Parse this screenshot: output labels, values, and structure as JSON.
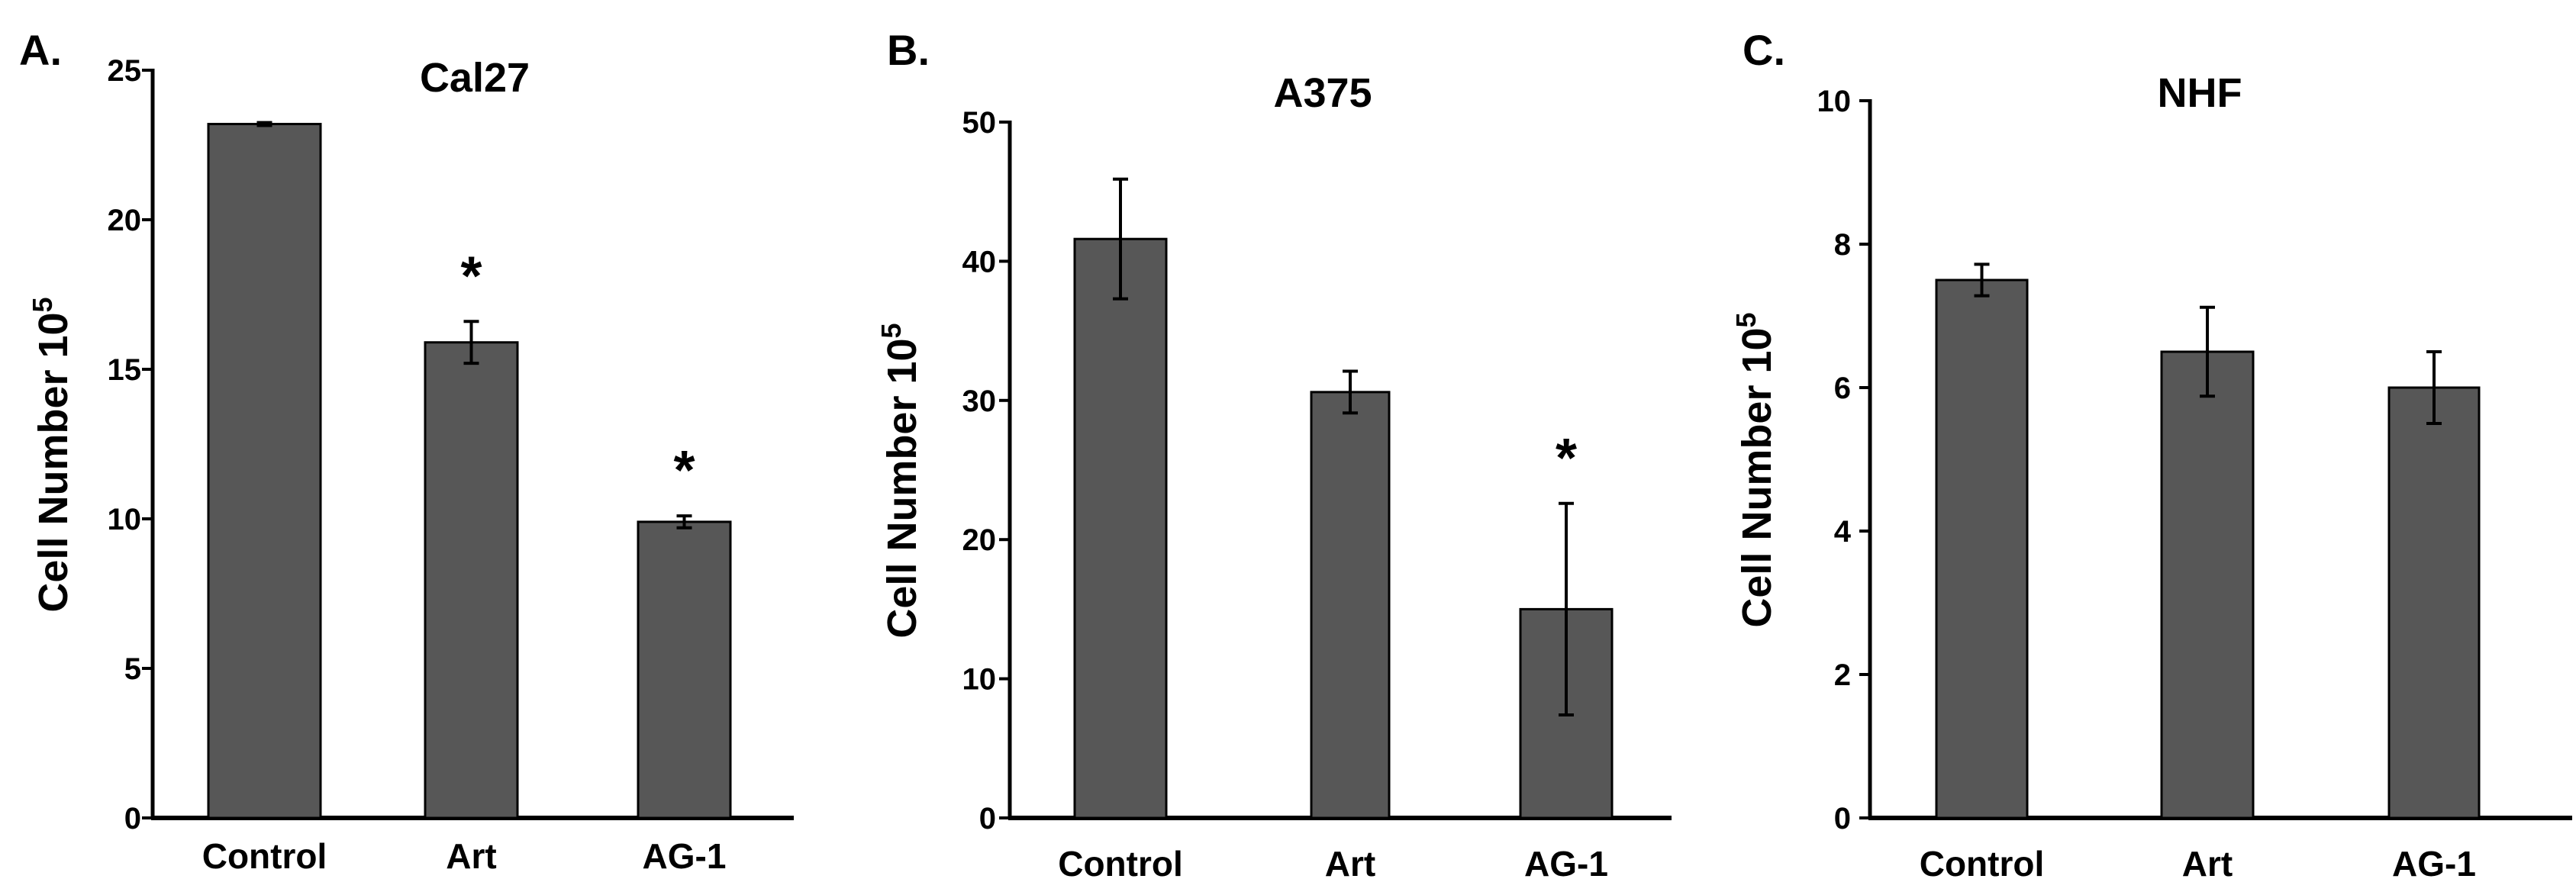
{
  "chart_data": [
    {
      "type": "bar",
      "panel_label": "A.",
      "title": "Cal27",
      "ylabel": "Cell Number 10",
      "ylabel_sup": "5",
      "xlabel": "",
      "categories": [
        "Control",
        "Art",
        "AG-1"
      ],
      "values": [
        23.2,
        15.9,
        9.9
      ],
      "errors": [
        0.05,
        0.7,
        0.2
      ],
      "significance": [
        "",
        "*",
        "*"
      ],
      "ylim": [
        0,
        25
      ],
      "yticks": [
        0,
        5,
        10,
        15,
        20,
        25
      ],
      "bar_color": "#575757",
      "grid": false
    },
    {
      "type": "bar",
      "panel_label": "B.",
      "title": "A375",
      "ylabel": "Cell Number 10",
      "ylabel_sup": "5",
      "xlabel": "",
      "categories": [
        "Control",
        "Art",
        "AG-1"
      ],
      "values": [
        41.6,
        30.6,
        15.0
      ],
      "errors": [
        4.3,
        1.5,
        7.6
      ],
      "significance": [
        "",
        "",
        "*"
      ],
      "ylim": [
        0,
        50
      ],
      "yticks": [
        0,
        10,
        20,
        30,
        40,
        50
      ],
      "bar_color": "#575757",
      "grid": false
    },
    {
      "type": "bar",
      "panel_label": "C.",
      "title": "NHF",
      "ylabel": "Cell Number 10",
      "ylabel_sup": "5",
      "xlabel": "",
      "categories": [
        "Control",
        "Art",
        "AG-1"
      ],
      "values": [
        7.5,
        6.5,
        6.0
      ],
      "errors": [
        0.22,
        0.62,
        0.5
      ],
      "significance": [
        "",
        "",
        ""
      ],
      "ylim": [
        0,
        10
      ],
      "yticks": [
        0,
        2,
        4,
        6,
        8,
        10
      ],
      "bar_color": "#575757",
      "grid": false
    }
  ]
}
